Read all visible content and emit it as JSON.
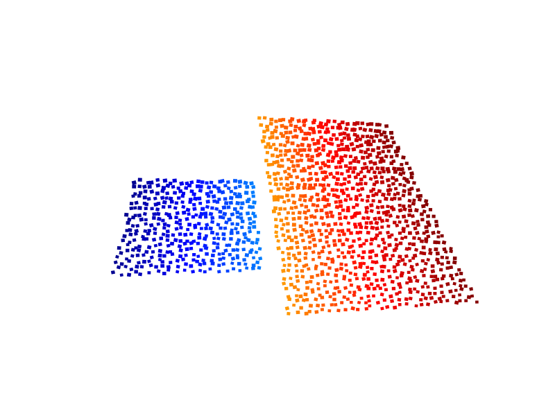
{
  "scene": {
    "background": "#ffffff",
    "clouds": [
      {
        "name": "small-plane",
        "colormap": "blue",
        "stops": [
          "#00008f",
          "#0000ff",
          "#0080ff"
        ],
        "rows": 18,
        "cols": 22
      },
      {
        "name": "large-plane",
        "colormap": "autumn-heat",
        "stops": [
          "#ff9a00",
          "#ff0000",
          "#800000"
        ],
        "rows": 34,
        "cols": 28
      }
    ]
  }
}
